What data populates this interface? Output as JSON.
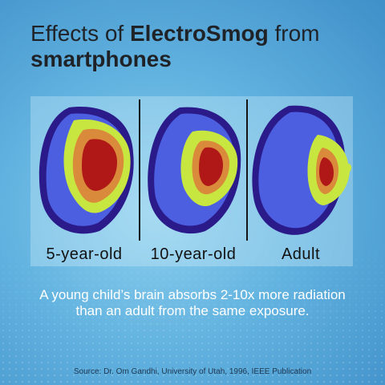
{
  "title": {
    "prefix": "Effects of ",
    "bold": "ElectroSmog",
    "suffix": " from",
    "line2": "smartphones"
  },
  "panels": [
    {
      "label": "5-year-old"
    },
    {
      "label": "10-year-old"
    },
    {
      "label": "Adult"
    }
  ],
  "caption": {
    "line1": "A young child’s brain absorbs 2-10x more radiation",
    "line2": "than an adult from the same exposure."
  },
  "source": "Source: Dr. Om Gandhi, University of Utah, 1996, IEEE Publication",
  "colors": {
    "head_outline": "#2a1a8a",
    "low": "#4b5fe0",
    "medium": "#c8e640",
    "high": "#d98a3a",
    "highest": "#b01818"
  }
}
